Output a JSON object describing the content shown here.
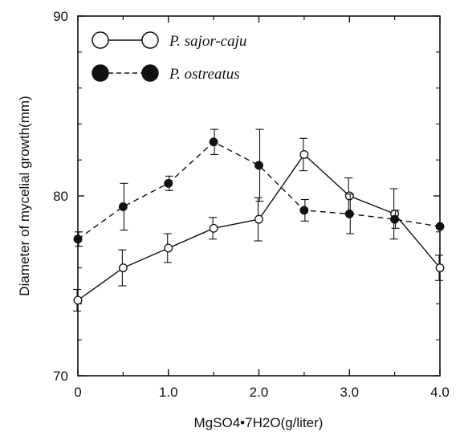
{
  "chart_data": {
    "type": "line",
    "title": "",
    "xlabel": "MgSO4•7H2O(g/liter)",
    "ylabel": "Diameter of mycelial growth(mm)",
    "xlim": [
      0,
      4.0
    ],
    "ylim": [
      70,
      90
    ],
    "x_ticks": [
      0,
      1.0,
      2.0,
      3.0,
      4.0
    ],
    "x_tick_labels": [
      "0",
      "1.0",
      "2.0",
      "3.0",
      "4.0"
    ],
    "y_ticks": [
      70,
      80,
      90
    ],
    "y_tick_labels": [
      "70",
      "80",
      "90"
    ],
    "grid": false,
    "legend_position": "top-left",
    "x": [
      0,
      0.5,
      1.0,
      1.5,
      2.0,
      2.5,
      3.0,
      3.5,
      4.0
    ],
    "series": [
      {
        "name": "P. sajor-caju",
        "marker": "open-circle",
        "line_style": "solid",
        "values": [
          74.2,
          76.0,
          77.1,
          78.2,
          78.7,
          82.3,
          80.0,
          79.0,
          76.0
        ],
        "errors": [
          0.6,
          1.0,
          0.8,
          0.6,
          1.2,
          0.9,
          1.0,
          1.4,
          0.7
        ]
      },
      {
        "name": "P. ostreatus",
        "marker": "filled-circle",
        "line_style": "dashed",
        "values": [
          77.6,
          79.4,
          80.7,
          83.0,
          81.7,
          79.2,
          79.0,
          78.7,
          78.3
        ],
        "errors": [
          0.4,
          1.3,
          0.4,
          0.7,
          2.0,
          0.6,
          1.1,
          0.5,
          0.0
        ]
      }
    ]
  }
}
